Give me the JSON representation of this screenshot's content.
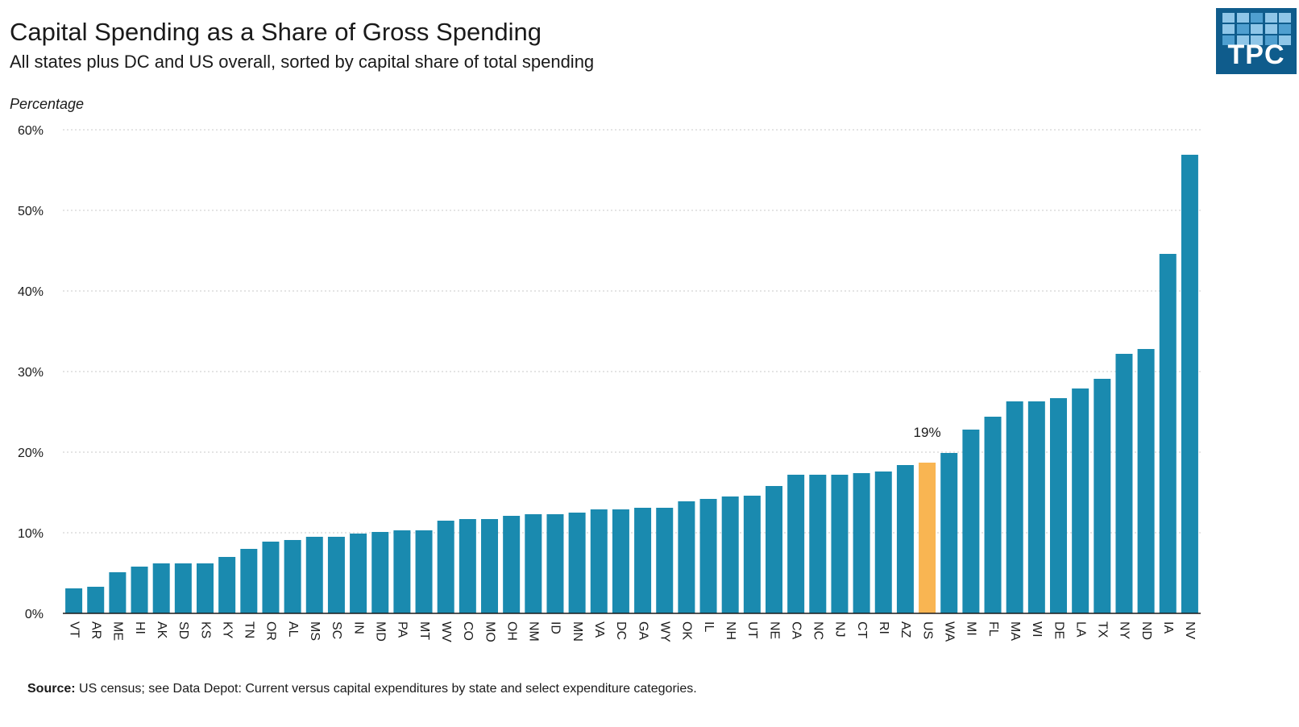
{
  "header": {
    "title": "Capital Spending as a Share of Gross Spending",
    "subtitle": "All states plus DC and US overall, sorted by capital share of total spending"
  },
  "logo": {
    "text": "TPC"
  },
  "footer": {
    "source_label": "Source:",
    "source_text": "US census; see Data Depot: Current versus capital expenditures by state and select expenditure categories."
  },
  "colors": {
    "bar": "#1a8aaf",
    "highlight": "#f9b552",
    "grid": "#c8c8c8",
    "axis": "#1a1a1a",
    "logo_bg": "#0f5c8c"
  },
  "chart_data": {
    "type": "bar",
    "title": "Capital Spending as a Share of Gross Spending",
    "subtitle": "All states plus DC and US overall, sorted by capital share of total spending",
    "ylabel": "Percentage",
    "xlabel": "",
    "ylim": [
      0,
      60
    ],
    "yticks": [
      0,
      10,
      20,
      30,
      40,
      50,
      60
    ],
    "ytick_labels": [
      "0%",
      "10%",
      "20%",
      "30%",
      "40%",
      "50%",
      "60%"
    ],
    "grid": true,
    "categories": [
      "VT",
      "AR",
      "ME",
      "HI",
      "AK",
      "SD",
      "KS",
      "KY",
      "TN",
      "OR",
      "AL",
      "MS",
      "SC",
      "IN",
      "MD",
      "PA",
      "MT",
      "WV",
      "CO",
      "MO",
      "OH",
      "NM",
      "ID",
      "MN",
      "VA",
      "DC",
      "GA",
      "WY",
      "OK",
      "IL",
      "NH",
      "UT",
      "NE",
      "CA",
      "NC",
      "NJ",
      "CT",
      "RI",
      "AZ",
      "US",
      "WA",
      "MI",
      "FL",
      "MA",
      "WI",
      "DE",
      "LA",
      "TX",
      "NY",
      "ND",
      "IA",
      "NV"
    ],
    "values": [
      3.1,
      3.3,
      5.1,
      5.8,
      6.2,
      6.2,
      6.2,
      7.0,
      8.0,
      8.9,
      9.1,
      9.5,
      9.5,
      9.9,
      10.1,
      10.3,
      10.3,
      11.5,
      11.7,
      11.7,
      12.1,
      12.3,
      12.3,
      12.5,
      12.9,
      12.9,
      13.1,
      13.1,
      13.9,
      14.2,
      14.5,
      14.6,
      15.8,
      17.2,
      17.2,
      17.2,
      17.4,
      17.6,
      18.4,
      18.7,
      19.9,
      22.8,
      24.4,
      26.3,
      26.3,
      26.7,
      27.9,
      29.1,
      32.2,
      32.8,
      44.6,
      56.9
    ],
    "highlight_category": "US",
    "annotations": [
      {
        "category": "US",
        "text": "19%"
      }
    ]
  }
}
